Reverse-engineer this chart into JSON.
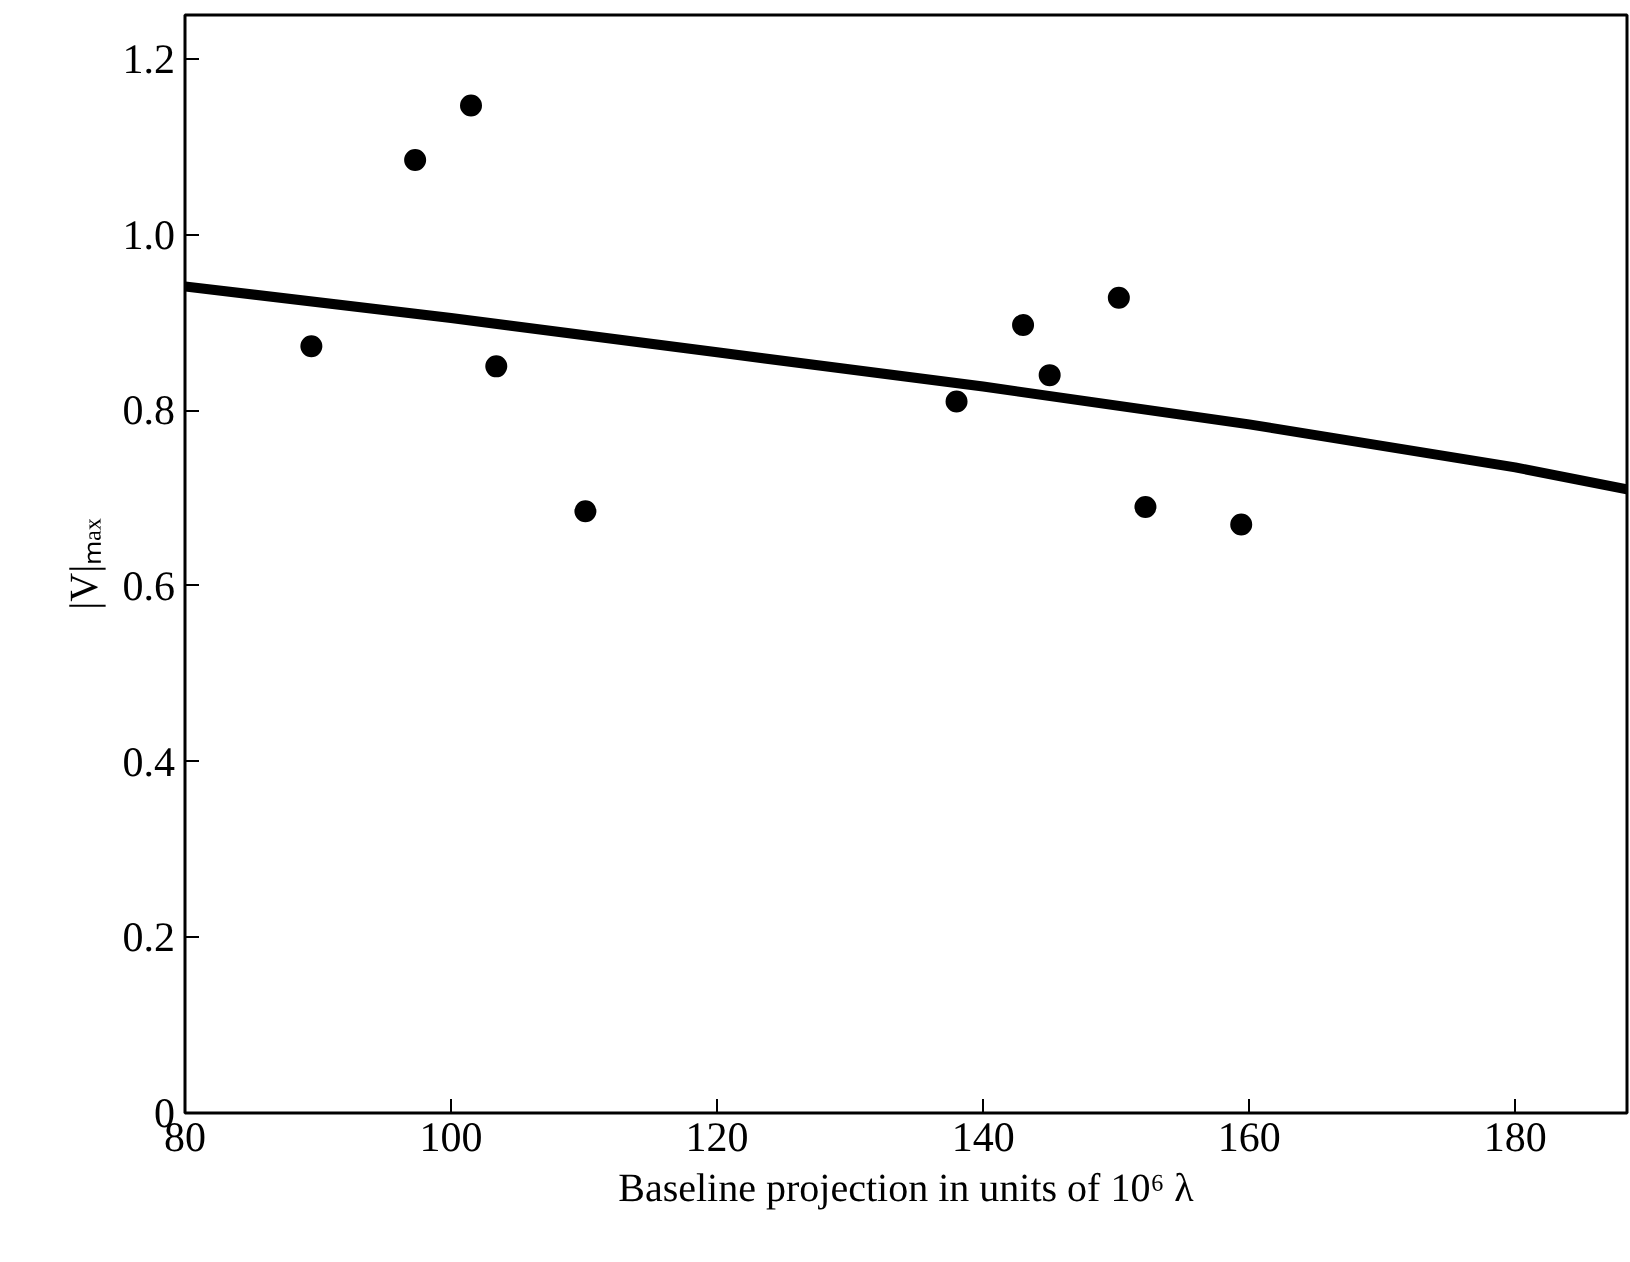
{
  "chart_data": {
    "type": "scatter",
    "xlabel": "Baseline projection in units of 10⁶ λ",
    "ylabel": "|V|ₘₐₓ",
    "xlim": [
      80,
      188.4
    ],
    "ylim": [
      0,
      1.25
    ],
    "xticks": [
      80,
      100,
      120,
      140,
      160,
      180
    ],
    "yticks": [
      0,
      {
        "value": 0.2,
        "label": "0.2"
      },
      {
        "value": 0.4,
        "label": "0.4"
      },
      {
        "value": 0.6,
        "label": "0.6"
      },
      {
        "value": 0.8,
        "label": "0.8"
      },
      {
        "value": 1.0,
        "label": "1.0"
      },
      {
        "value": 1.2,
        "label": "1.2"
      }
    ],
    "grid": false,
    "marker": "circle",
    "series": [
      {
        "color": "#000000",
        "x": [
          89.5,
          97.3,
          101.5,
          103.4,
          110.1,
          138,
          143,
          145,
          150.2,
          152.2,
          159.4
        ],
        "values": [
          0.873,
          1.085,
          1.147,
          0.85,
          0.685,
          0.81,
          0.897,
          0.84,
          0.928,
          0.69,
          0.67
        ]
      },
      {
        "type": "line",
        "color": "#000000",
        "line_style": "solid",
        "marker": "none",
        "x": [
          80,
          100,
          120,
          140,
          160,
          180,
          188.4
        ],
        "values": [
          0.941,
          0.905,
          0.866,
          0.827,
          0.784,
          0.735,
          0.71
        ]
      }
    ]
  }
}
